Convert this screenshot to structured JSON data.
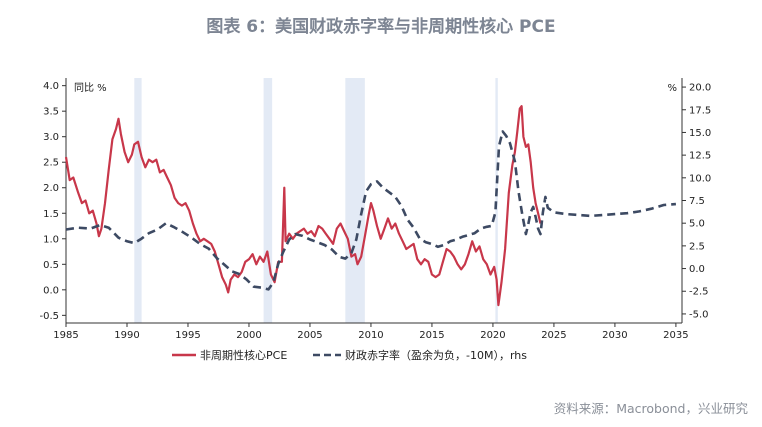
{
  "title": "图表 6：美国财政赤字率与非周期性核心 PCE",
  "source": "资料来源：Macrobond，兴业研究",
  "chart_data": {
    "type": "line",
    "left_unit": "同比 %",
    "right_unit": "%",
    "xlim": [
      1985,
      2035.5
    ],
    "ylim_left": [
      -0.65,
      4.15
    ],
    "ylim_right": [
      -6.0,
      21.0
    ],
    "x_ticks": [
      1985,
      1990,
      1995,
      2000,
      2005,
      2010,
      2015,
      2020,
      2025,
      2030,
      2035
    ],
    "x_tick_labels": [
      "1985",
      "1990",
      "1995",
      "2000",
      "2005",
      "2010",
      "2015",
      "2020",
      "2025",
      "2030",
      "2035"
    ],
    "y_left_ticks": [
      4.0,
      3.5,
      3.0,
      2.5,
      2.0,
      1.5,
      1.0,
      0.5,
      0.0,
      -0.5
    ],
    "y_left_tick_labels": [
      "4.0",
      "3.5",
      "3.0",
      "2.5",
      "2.0",
      "1.5",
      "1.0",
      "0.5",
      "0.0",
      "-0.5"
    ],
    "y_right_ticks": [
      20.0,
      17.5,
      15.0,
      12.5,
      10.0,
      7.5,
      5.0,
      2.5,
      0.0,
      -2.5,
      -5.0
    ],
    "y_right_tick_labels": [
      "20.0",
      "17.5",
      "15.0",
      "12.5",
      "10.0",
      "7.5",
      "5.0",
      "2.5",
      "0.0",
      "-2.5",
      "-5.0"
    ],
    "recessions": [
      [
        1990.6,
        1991.2
      ],
      [
        2001.2,
        2001.9
      ],
      [
        2007.9,
        2009.5
      ],
      [
        2020.2,
        2020.4
      ]
    ],
    "series": [
      {
        "name": "非周期性核心PCE",
        "axis": "left",
        "color": "#c8374a",
        "style": "solid",
        "points": [
          [
            1985.0,
            2.6
          ],
          [
            1985.3,
            2.15
          ],
          [
            1985.6,
            2.2
          ],
          [
            1986.0,
            1.9
          ],
          [
            1986.3,
            1.7
          ],
          [
            1986.6,
            1.75
          ],
          [
            1986.9,
            1.5
          ],
          [
            1987.2,
            1.55
          ],
          [
            1987.5,
            1.3
          ],
          [
            1987.7,
            1.05
          ],
          [
            1987.9,
            1.2
          ],
          [
            1988.2,
            1.7
          ],
          [
            1988.5,
            2.35
          ],
          [
            1988.8,
            2.95
          ],
          [
            1989.1,
            3.15
          ],
          [
            1989.3,
            3.35
          ],
          [
            1989.5,
            3.05
          ],
          [
            1989.8,
            2.7
          ],
          [
            1990.1,
            2.5
          ],
          [
            1990.4,
            2.65
          ],
          [
            1990.6,
            2.85
          ],
          [
            1990.9,
            2.9
          ],
          [
            1991.2,
            2.6
          ],
          [
            1991.5,
            2.4
          ],
          [
            1991.8,
            2.55
          ],
          [
            1992.1,
            2.5
          ],
          [
            1992.4,
            2.55
          ],
          [
            1992.7,
            2.3
          ],
          [
            1993.0,
            2.35
          ],
          [
            1993.3,
            2.2
          ],
          [
            1993.6,
            2.05
          ],
          [
            1993.9,
            1.8
          ],
          [
            1994.2,
            1.7
          ],
          [
            1994.5,
            1.65
          ],
          [
            1994.8,
            1.7
          ],
          [
            1995.1,
            1.55
          ],
          [
            1995.4,
            1.3
          ],
          [
            1995.7,
            1.1
          ],
          [
            1996.0,
            0.95
          ],
          [
            1996.3,
            1.0
          ],
          [
            1996.6,
            0.95
          ],
          [
            1996.9,
            0.9
          ],
          [
            1997.2,
            0.75
          ],
          [
            1997.5,
            0.5
          ],
          [
            1997.8,
            0.25
          ],
          [
            1998.1,
            0.1
          ],
          [
            1998.3,
            -0.05
          ],
          [
            1998.5,
            0.2
          ],
          [
            1998.8,
            0.3
          ],
          [
            1999.1,
            0.25
          ],
          [
            1999.4,
            0.35
          ],
          [
            1999.7,
            0.55
          ],
          [
            2000.0,
            0.6
          ],
          [
            2000.3,
            0.7
          ],
          [
            2000.6,
            0.5
          ],
          [
            2000.9,
            0.65
          ],
          [
            2001.2,
            0.55
          ],
          [
            2001.5,
            0.75
          ],
          [
            2001.8,
            0.3
          ],
          [
            2002.1,
            0.15
          ],
          [
            2002.4,
            0.55
          ],
          [
            2002.7,
            0.55
          ],
          [
            2002.9,
            2.0
          ],
          [
            2003.0,
            0.95
          ],
          [
            2003.3,
            1.1
          ],
          [
            2003.6,
            1.0
          ],
          [
            2003.9,
            1.1
          ],
          [
            2004.2,
            1.15
          ],
          [
            2004.5,
            1.2
          ],
          [
            2004.8,
            1.1
          ],
          [
            2005.1,
            1.15
          ],
          [
            2005.4,
            1.05
          ],
          [
            2005.7,
            1.25
          ],
          [
            2006.0,
            1.2
          ],
          [
            2006.3,
            1.1
          ],
          [
            2006.6,
            1.0
          ],
          [
            2006.9,
            0.9
          ],
          [
            2007.2,
            1.2
          ],
          [
            2007.5,
            1.3
          ],
          [
            2007.8,
            1.15
          ],
          [
            2008.1,
            1.0
          ],
          [
            2008.4,
            0.65
          ],
          [
            2008.7,
            0.7
          ],
          [
            2008.9,
            0.5
          ],
          [
            2009.2,
            0.65
          ],
          [
            2009.5,
            1.05
          ],
          [
            2009.8,
            1.45
          ],
          [
            2010.0,
            1.7
          ],
          [
            2010.2,
            1.55
          ],
          [
            2010.5,
            1.25
          ],
          [
            2010.8,
            1.0
          ],
          [
            2011.1,
            1.2
          ],
          [
            2011.4,
            1.4
          ],
          [
            2011.7,
            1.2
          ],
          [
            2012.0,
            1.3
          ],
          [
            2012.3,
            1.1
          ],
          [
            2012.6,
            0.95
          ],
          [
            2012.9,
            0.8
          ],
          [
            2013.2,
            0.85
          ],
          [
            2013.5,
            0.9
          ],
          [
            2013.8,
            0.6
          ],
          [
            2014.1,
            0.5
          ],
          [
            2014.4,
            0.6
          ],
          [
            2014.7,
            0.55
          ],
          [
            2015.0,
            0.3
          ],
          [
            2015.3,
            0.25
          ],
          [
            2015.6,
            0.3
          ],
          [
            2015.9,
            0.55
          ],
          [
            2016.2,
            0.8
          ],
          [
            2016.5,
            0.75
          ],
          [
            2016.8,
            0.65
          ],
          [
            2017.1,
            0.5
          ],
          [
            2017.4,
            0.4
          ],
          [
            2017.7,
            0.5
          ],
          [
            2018.0,
            0.7
          ],
          [
            2018.3,
            0.95
          ],
          [
            2018.6,
            0.75
          ],
          [
            2018.9,
            0.85
          ],
          [
            2019.2,
            0.6
          ],
          [
            2019.5,
            0.5
          ],
          [
            2019.8,
            0.3
          ],
          [
            2020.1,
            0.45
          ],
          [
            2020.3,
            0.2
          ],
          [
            2020.45,
            -0.3
          ],
          [
            2020.7,
            0.15
          ],
          [
            2021.0,
            0.8
          ],
          [
            2021.3,
            1.9
          ],
          [
            2021.6,
            2.45
          ],
          [
            2021.8,
            2.7
          ],
          [
            2022.0,
            3.1
          ],
          [
            2022.2,
            3.55
          ],
          [
            2022.35,
            3.6
          ],
          [
            2022.5,
            3.0
          ],
          [
            2022.7,
            2.8
          ],
          [
            2022.9,
            2.85
          ],
          [
            2023.1,
            2.5
          ],
          [
            2023.3,
            2.0
          ],
          [
            2023.5,
            1.7
          ],
          [
            2023.7,
            1.5
          ],
          [
            2023.9,
            1.3
          ]
        ]
      },
      {
        "name": "财政赤字率（盈余为负，-10M），rhs",
        "axis": "right",
        "color": "#3d4a63",
        "style": "dashed",
        "points": [
          [
            1985.0,
            4.3
          ],
          [
            1986.0,
            4.5
          ],
          [
            1987.0,
            4.4
          ],
          [
            1987.8,
            4.8
          ],
          [
            1988.5,
            4.5
          ],
          [
            1989.3,
            3.4
          ],
          [
            1990.0,
            3.0
          ],
          [
            1990.6,
            2.8
          ],
          [
            1991.2,
            3.3
          ],
          [
            1991.8,
            3.9
          ],
          [
            1992.5,
            4.3
          ],
          [
            1993.2,
            5.0
          ],
          [
            1993.8,
            4.6
          ],
          [
            1994.6,
            4.0
          ],
          [
            1995.3,
            3.4
          ],
          [
            1996.0,
            2.7
          ],
          [
            1996.7,
            2.2
          ],
          [
            1997.4,
            1.1
          ],
          [
            1998.0,
            0.4
          ],
          [
            1998.6,
            -0.3
          ],
          [
            1999.2,
            -0.6
          ],
          [
            1999.8,
            -1.2
          ],
          [
            2000.4,
            -2.0
          ],
          [
            2001.0,
            -2.1
          ],
          [
            2001.6,
            -2.3
          ],
          [
            2002.0,
            -1.5
          ],
          [
            2002.4,
            0.5
          ],
          [
            2002.8,
            1.8
          ],
          [
            2003.3,
            3.2
          ],
          [
            2003.8,
            3.8
          ],
          [
            2004.4,
            3.6
          ],
          [
            2005.0,
            3.2
          ],
          [
            2005.6,
            2.9
          ],
          [
            2006.2,
            2.6
          ],
          [
            2006.8,
            2.1
          ],
          [
            2007.4,
            1.3
          ],
          [
            2007.9,
            1.1
          ],
          [
            2008.4,
            1.7
          ],
          [
            2008.8,
            3.2
          ],
          [
            2009.2,
            6.0
          ],
          [
            2009.6,
            8.5
          ],
          [
            2010.0,
            9.3
          ],
          [
            2010.5,
            9.6
          ],
          [
            2011.0,
            8.9
          ],
          [
            2011.5,
            8.4
          ],
          [
            2012.0,
            7.9
          ],
          [
            2012.5,
            6.9
          ],
          [
            2013.0,
            5.4
          ],
          [
            2013.5,
            4.5
          ],
          [
            2014.0,
            3.3
          ],
          [
            2014.5,
            2.9
          ],
          [
            2015.0,
            2.7
          ],
          [
            2015.5,
            2.4
          ],
          [
            2016.0,
            2.6
          ],
          [
            2016.5,
            3.0
          ],
          [
            2017.0,
            3.2
          ],
          [
            2017.5,
            3.5
          ],
          [
            2018.0,
            3.7
          ],
          [
            2018.5,
            3.9
          ],
          [
            2019.0,
            4.4
          ],
          [
            2019.5,
            4.6
          ],
          [
            2019.9,
            4.7
          ],
          [
            2020.2,
            6.2
          ],
          [
            2020.5,
            13.5
          ],
          [
            2020.8,
            15.1
          ],
          [
            2021.1,
            14.6
          ],
          [
            2021.4,
            13.8
          ],
          [
            2021.8,
            11.8
          ],
          [
            2022.1,
            8.5
          ],
          [
            2022.4,
            6.0
          ],
          [
            2022.7,
            3.8
          ],
          [
            2022.9,
            4.9
          ],
          [
            2023.1,
            6.2
          ],
          [
            2023.3,
            6.8
          ],
          [
            2023.5,
            5.7
          ],
          [
            2023.7,
            4.4
          ],
          [
            2023.9,
            3.8
          ],
          [
            2024.1,
            6.2
          ],
          [
            2024.3,
            7.9
          ],
          [
            2024.5,
            6.7
          ],
          [
            2025.0,
            6.2
          ],
          [
            2026.0,
            6.0
          ],
          [
            2027.0,
            5.9
          ],
          [
            2028.0,
            5.8
          ],
          [
            2029.0,
            5.9
          ],
          [
            2030.0,
            6.0
          ],
          [
            2031.0,
            6.1
          ],
          [
            2032.0,
            6.3
          ],
          [
            2033.0,
            6.6
          ],
          [
            2034.0,
            7.0
          ],
          [
            2035.0,
            7.1
          ]
        ]
      }
    ]
  }
}
